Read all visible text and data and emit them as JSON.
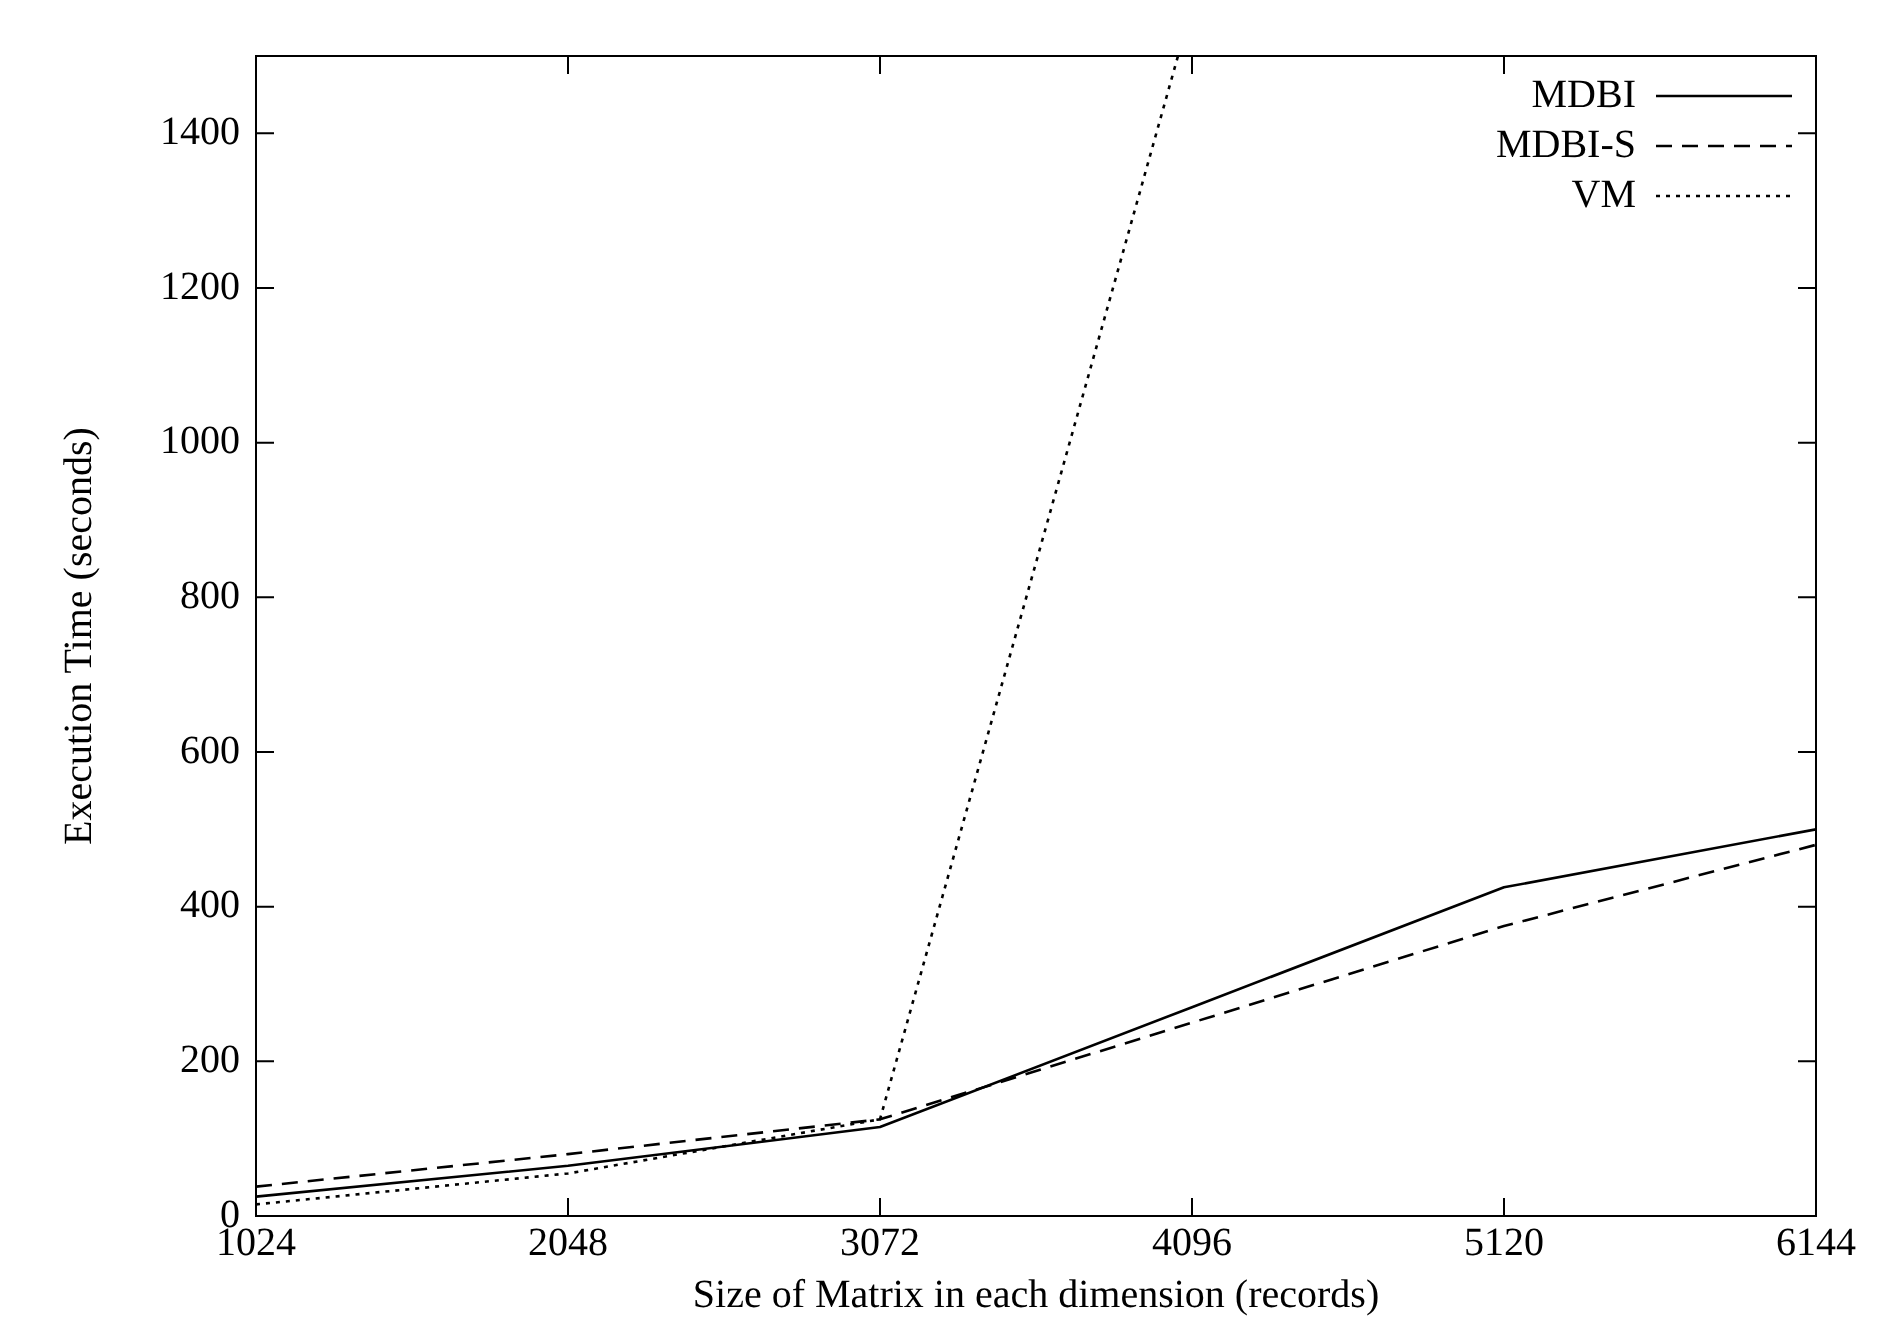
{
  "chart_data": {
    "type": "line",
    "xlabel": "Size of Matrix in each dimension (records)",
    "ylabel": "Execution Time (seconds)",
    "x": [
      1024,
      2048,
      3072,
      4096,
      5120,
      6144
    ],
    "xlim": [
      1024,
      6144
    ],
    "xticks": [
      1024,
      2048,
      3072,
      4096,
      5120,
      6144
    ],
    "ylim": [
      0,
      1500
    ],
    "yticks": [
      0,
      200,
      400,
      600,
      800,
      1000,
      1200,
      1400
    ],
    "grid": false,
    "legend": "top right",
    "marker": "none",
    "series": [
      {
        "name": "MDBI",
        "color": "#000000",
        "line_style": "solid",
        "values": [
          25,
          65,
          115,
          270,
          425,
          500
        ]
      },
      {
        "name": "MDBI-S",
        "color": "#000000",
        "line_style": "dashed",
        "values": [
          38,
          80,
          125,
          250,
          375,
          480
        ]
      },
      {
        "name": "VM",
        "color": "#000000",
        "line_style": "dotted",
        "x": [
          1024,
          2048,
          3072,
          4050
        ],
        "values": [
          15,
          55,
          125,
          1500
        ]
      }
    ]
  }
}
